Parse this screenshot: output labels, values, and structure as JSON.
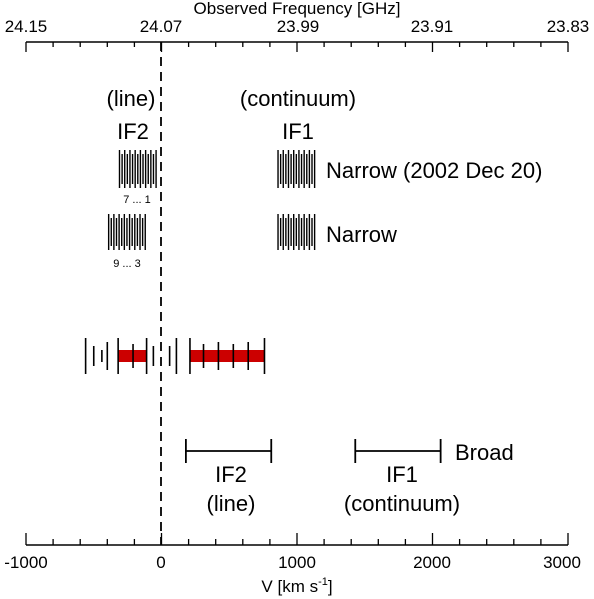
{
  "top_axis": {
    "title": "Observed Frequency [GHz]",
    "ticks": [
      "24.15",
      "24.07",
      "23.99",
      "23.91",
      "23.83"
    ]
  },
  "bottom_axis": {
    "title_main": "V [km s",
    "title_sup": "-1",
    "title_end": "]",
    "ticks": [
      "-1000",
      "0",
      "1000",
      "2000",
      "3000"
    ],
    "range_kms": [
      -1000,
      3000
    ],
    "tick_values": [
      -1000,
      0,
      1000,
      2000,
      3000
    ],
    "minor_step": 200
  },
  "labels": {
    "line_top": "(line)",
    "if2_top": "IF2",
    "continuum_top": "(continuum)",
    "if1_top": "IF1",
    "narrow_2002": "Narrow (2002 Dec 20)",
    "narrow": "Narrow",
    "chan_range_1": "7 ... 1",
    "chan_range_2": "9 ... 3",
    "broad": "Broad",
    "if2_bottom": "IF2",
    "line_bottom": "(line)",
    "if1_bottom": "IF1",
    "continuum_bottom": "(continuum)"
  },
  "bands": {
    "narrow_2002_if2_kms": [
      -310,
      -40
    ],
    "narrow_2002_if1_kms": [
      860,
      1130
    ],
    "narrow_if2_kms": [
      -390,
      -120
    ],
    "narrow_if1_kms": [
      860,
      1130
    ],
    "broad_if2_kms": [
      180,
      810
    ],
    "broad_if1_kms": [
      1430,
      2060
    ],
    "sampled_red_kms": [
      [
        -320,
        -110
      ],
      [
        210,
        760
      ]
    ]
  },
  "colors": {
    "highlight": "#cc0000",
    "ink": "#000000"
  }
}
